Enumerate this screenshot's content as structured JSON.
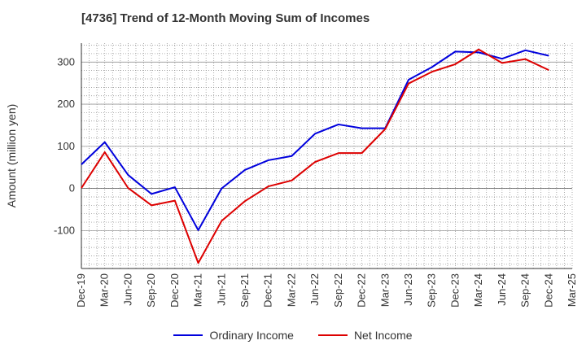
{
  "chart_data": {
    "type": "line",
    "title": "[4736]  Trend of 12-Month Moving Sum of Incomes",
    "xlabel": "",
    "ylabel": "Amount (million yen)",
    "ylim": [
      -190,
      345
    ],
    "yticks": [
      -100,
      0,
      100,
      200,
      300
    ],
    "categories": [
      "Dec-19",
      "Mar-20",
      "Jun-20",
      "Sep-20",
      "Dec-20",
      "Mar-21",
      "Jun-21",
      "Sep-21",
      "Dec-21",
      "Mar-22",
      "Jun-22",
      "Sep-22",
      "Dec-22",
      "Mar-23",
      "Jun-23",
      "Sep-23",
      "Dec-23",
      "Mar-24",
      "Jun-24",
      "Sep-24",
      "Dec-24",
      "Mar-25"
    ],
    "series": [
      {
        "name": "Ordinary Income",
        "color": "#0000dd",
        "values": [
          57,
          110,
          32,
          -13,
          3,
          -99,
          0,
          44,
          67,
          77,
          130,
          152,
          143,
          143,
          258,
          288,
          325,
          323,
          308,
          328,
          315,
          null
        ]
      },
      {
        "name": "Net Income",
        "color": "#dd0000",
        "values": [
          1,
          86,
          1,
          -40,
          -29,
          -177,
          -77,
          -30,
          5,
          19,
          63,
          84,
          84,
          141,
          249,
          277,
          295,
          330,
          298,
          307,
          281,
          null
        ]
      }
    ],
    "grid": true,
    "legend_position": "bottom"
  }
}
